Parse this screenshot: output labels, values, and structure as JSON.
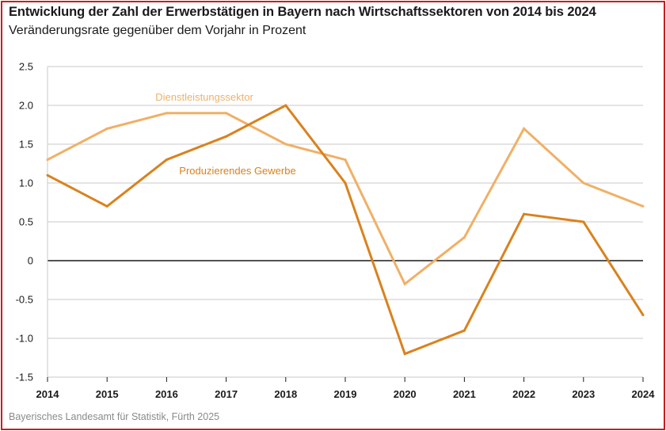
{
  "header": {
    "title": "Entwicklung der Zahl der Erwerbstätigen in Bayern nach Wirtschaftssektoren von 2014 bis 2024",
    "subtitle": "Veränderungsrate gegenüber dem Vorjahr in Prozent"
  },
  "footer": {
    "source": "Bayerisches Landesamt für Statistik, Fürth 2025"
  },
  "colors": {
    "frame": "#c81e1e",
    "dienstleistung": "#f0b066",
    "produzierend": "#d9821e",
    "grid": "#c8c8c8",
    "zero": "#1a1a1a"
  },
  "chart_data": {
    "type": "line",
    "title": "Entwicklung der Zahl der Erwerbstätigen in Bayern nach Wirtschaftssektoren von 2014 bis 2024",
    "ylabel": "Veränderungsrate gegenüber dem Vorjahr in Prozent",
    "xlabel": "",
    "x": [
      "2014",
      "2015",
      "2016",
      "2017",
      "2018",
      "2019",
      "2020",
      "2021",
      "2022",
      "2023",
      "2024"
    ],
    "ylim": [
      -1.5,
      2.5
    ],
    "yticks": [
      "2.5",
      "2.0",
      "1.5",
      "1.0",
      "0.5",
      "0",
      "-0.5",
      "-1.0",
      "-1.5"
    ],
    "grid": true,
    "series": [
      {
        "name": "Dienstleistungssektor",
        "values": [
          1.3,
          1.7,
          1.9,
          1.9,
          1.5,
          1.3,
          -0.3,
          0.3,
          1.7,
          1.0,
          0.7
        ]
      },
      {
        "name": "Produzierendes Gewerbe",
        "values": [
          1.1,
          0.7,
          1.3,
          1.6,
          2.0,
          1.0,
          -1.2,
          -0.9,
          0.6,
          0.5,
          -0.7
        ]
      }
    ]
  }
}
